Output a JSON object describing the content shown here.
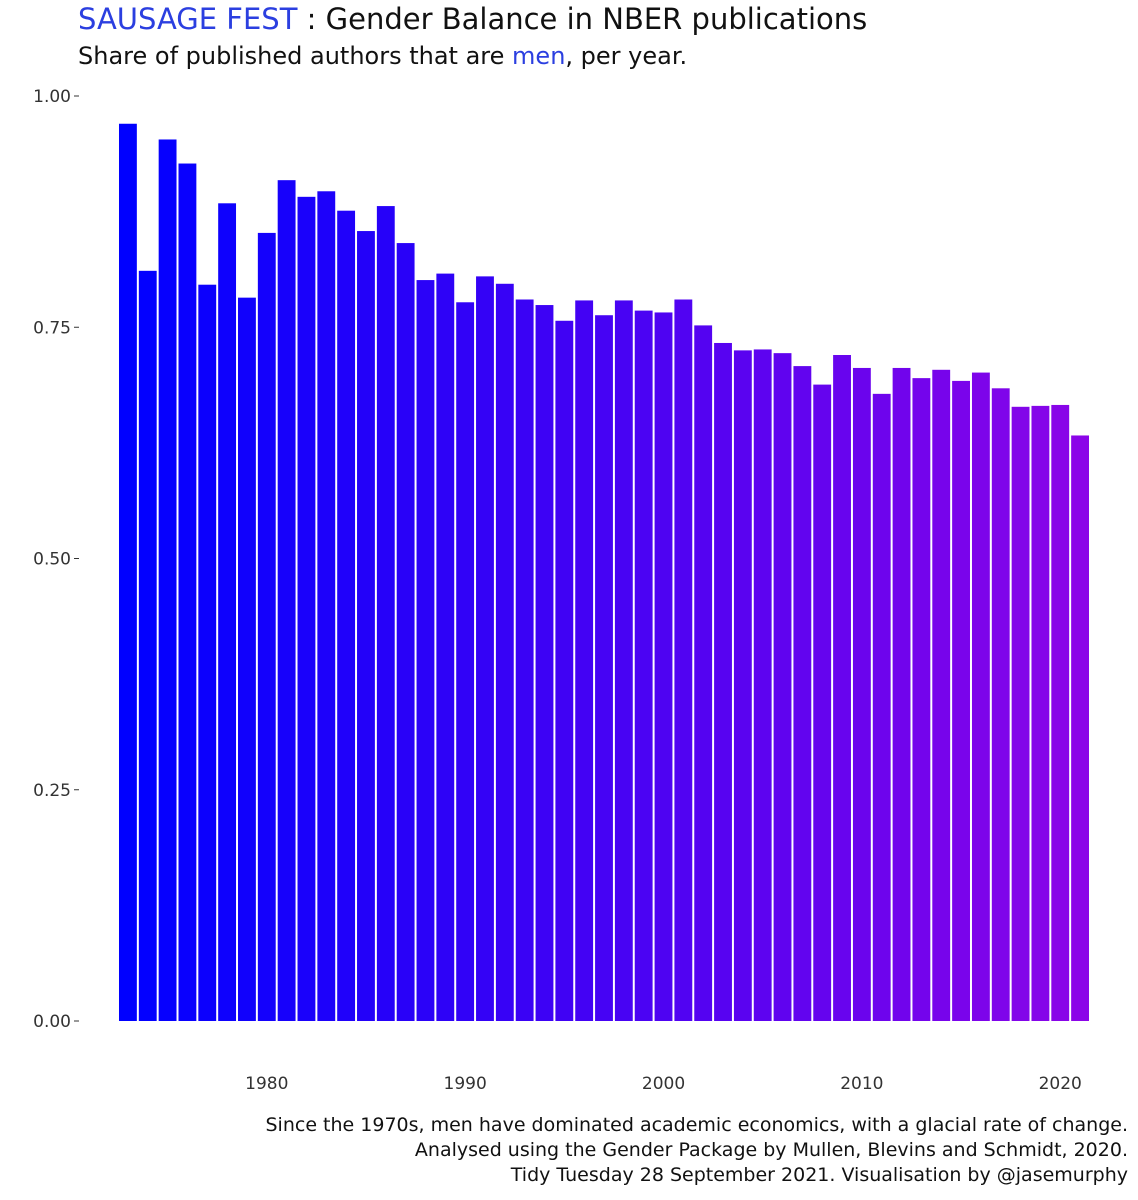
{
  "title": {
    "highlight": "SAUSAGE FEST",
    "rest": " : Gender Balance in NBER publications"
  },
  "subtitle": {
    "before": "Share of published authors that are ",
    "highlight": "men",
    "after": ", per year."
  },
  "caption": {
    "line1": "Since the 1970s, men have dominated academic economics, with a glacial rate of change.",
    "line2": "Analysed using the Gender Package by Mullen, Blevins and Schmidt, 2020.",
    "line3": "Tidy Tuesday 28 September 2021. Visualisation by @jasemurphy"
  },
  "colors": {
    "accent": "#2b3fe0",
    "bar_start": "#0000ff",
    "bar_end": "#8b05e8"
  },
  "chart_data": {
    "type": "bar",
    "title": "SAUSAGE FEST : Gender Balance in NBER publications",
    "subtitle": "Share of published authors that are men, per year.",
    "xlabel": "",
    "ylabel": "",
    "ylim": [
      0,
      1
    ],
    "yticks": [
      "0.00",
      "0.25",
      "0.50",
      "0.75",
      "1.00"
    ],
    "ytick_values": [
      0,
      0.25,
      0.5,
      0.75,
      1.0
    ],
    "xticks": [
      "1980",
      "1990",
      "2000",
      "2010",
      "2020"
    ],
    "xtick_values": [
      1980,
      1990,
      2000,
      2010,
      2020
    ],
    "xlim": [
      1972.5,
      2021.5
    ],
    "grid": false,
    "legend": "none",
    "fill": "gradient by year from blue to purple",
    "categories": [
      1973,
      1974,
      1975,
      1976,
      1977,
      1978,
      1979,
      1980,
      1981,
      1982,
      1983,
      1984,
      1985,
      1986,
      1987,
      1988,
      1989,
      1990,
      1991,
      1992,
      1993,
      1994,
      1995,
      1996,
      1997,
      1998,
      1999,
      2000,
      2001,
      2002,
      2003,
      2004,
      2005,
      2006,
      2007,
      2008,
      2009,
      2010,
      2011,
      2012,
      2013,
      2014,
      2015,
      2016,
      2017,
      2018,
      2019,
      2020,
      2021
    ],
    "values": [
      0.97,
      0.811,
      0.953,
      0.927,
      0.796,
      0.884,
      0.782,
      0.852,
      0.909,
      0.891,
      0.897,
      0.876,
      0.854,
      0.881,
      0.841,
      0.801,
      0.808,
      0.777,
      0.805,
      0.797,
      0.78,
      0.774,
      0.757,
      0.779,
      0.763,
      0.779,
      0.768,
      0.766,
      0.78,
      0.752,
      0.733,
      0.725,
      0.726,
      0.722,
      0.708,
      0.688,
      0.72,
      0.706,
      0.678,
      0.706,
      0.695,
      0.704,
      0.692,
      0.701,
      0.684,
      0.664,
      0.665,
      0.666,
      0.633
    ]
  }
}
